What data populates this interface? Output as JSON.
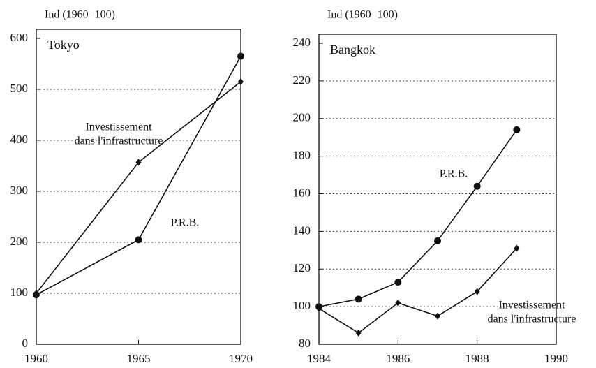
{
  "chart_data": [
    {
      "type": "line",
      "title": "Tokyo",
      "y_label": "Ind (1960=100)",
      "x": [
        1960,
        1965,
        1970
      ],
      "xlim": [
        1960,
        1970
      ],
      "xticks": [
        1960,
        1965,
        1970
      ],
      "ylim": [
        0,
        600
      ],
      "yticks": [
        0,
        100,
        200,
        300,
        400,
        500,
        600
      ],
      "grid": true,
      "series": [
        {
          "name": "Investissement dans l'infrastructure",
          "color": "#111111",
          "marker": "diamond",
          "values": [
            100,
            357,
            515
          ]
        },
        {
          "name": "P.R.B.",
          "color": "#111111",
          "marker": "circle",
          "values": [
            97,
            205,
            565
          ]
        }
      ],
      "annotations": [
        {
          "lines": [
            "Investissement",
            "dans l'infrastructure"
          ]
        },
        {
          "lines": [
            "P.R.B."
          ]
        }
      ]
    },
    {
      "type": "line",
      "title": "Bangkok",
      "y_label": "Ind (1960=100)",
      "x": [
        1984,
        1985,
        1986,
        1987,
        1988,
        1989
      ],
      "xlim": [
        1984,
        1990
      ],
      "xticks": [
        1984,
        1986,
        1988,
        1990
      ],
      "ylim": [
        80,
        240
      ],
      "yticks": [
        80,
        100,
        120,
        140,
        160,
        180,
        200,
        220,
        240
      ],
      "grid": true,
      "series": [
        {
          "name": "P.R.B.",
          "color": "#111111",
          "marker": "circle",
          "values": [
            100,
            104,
            113,
            135,
            164,
            194
          ]
        },
        {
          "name": "Investissement dans l'infrastructure",
          "color": "#111111",
          "marker": "diamond",
          "values": [
            99,
            86,
            102,
            95,
            108,
            131
          ]
        }
      ],
      "annotations": [
        {
          "lines": [
            "P.R.B."
          ]
        },
        {
          "lines": [
            "Investissement",
            "dans l'infrastructure"
          ]
        }
      ]
    }
  ]
}
